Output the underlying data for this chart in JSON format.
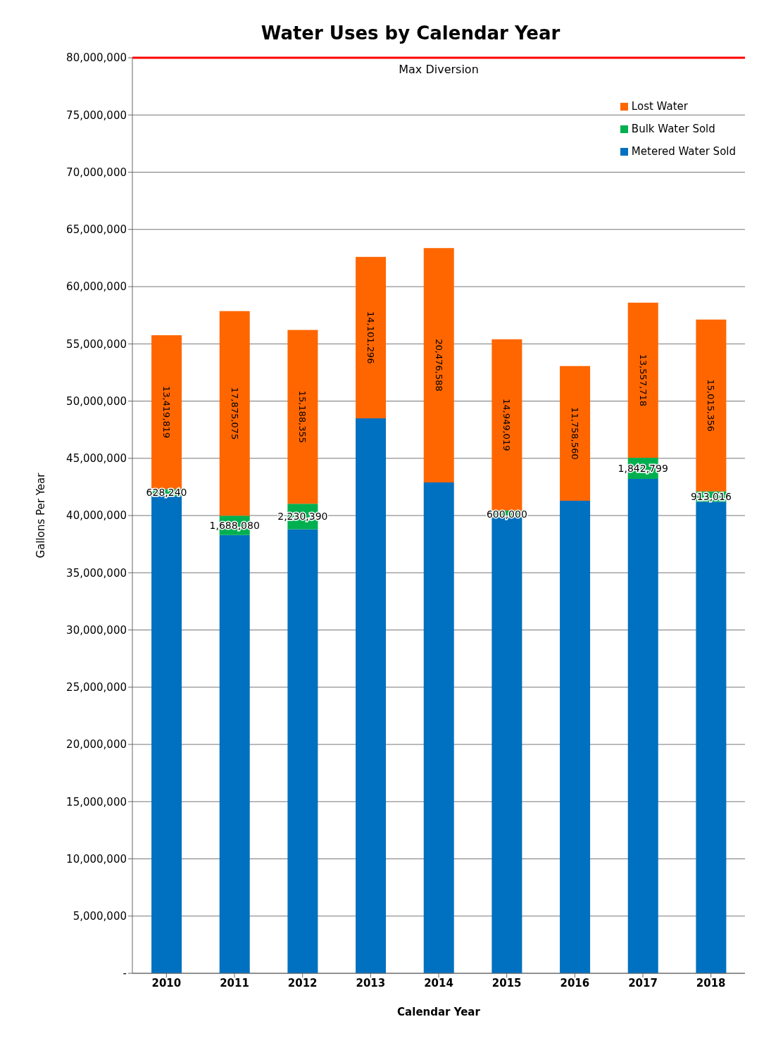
{
  "chart_data": {
    "type": "bar",
    "title": "Water Uses by Calendar Year",
    "xlabel": "Calendar Year",
    "ylabel": "Gallons Per Year",
    "categories": [
      "2010",
      "2011",
      "2012",
      "2013",
      "2014",
      "2015",
      "2016",
      "2017",
      "2018"
    ],
    "stacked": true,
    "series": [
      {
        "name": "Metered Water Sold",
        "color": "#0070c0",
        "values": [
          41700000,
          38300000,
          38800000,
          48500000,
          42900000,
          39850000,
          41300000,
          43200000,
          41200000
        ],
        "value_labels": [
          null,
          null,
          null,
          null,
          null,
          null,
          null,
          null,
          null
        ]
      },
      {
        "name": "Bulk Water Sold",
        "color": "#00b050",
        "values": [
          628240,
          1688080,
          2230390,
          null,
          null,
          600000,
          null,
          1842799,
          913016
        ],
        "value_labels": [
          "628,240",
          "1,688,080",
          "2,230,390",
          null,
          null,
          "600,000",
          null,
          "1,842,799",
          "913,016"
        ]
      },
      {
        "name": "Lost Water",
        "color": "#ff6600",
        "values": [
          13419819,
          17875075,
          15188355,
          14101296,
          20476588,
          14949019,
          11758560,
          13557718,
          15015356
        ],
        "value_labels": [
          "13,419,819",
          "17,875,075",
          "15,188,355",
          "14,101,296",
          "20,476,588",
          "14,949,019",
          "11,758,560",
          "13,557,718",
          "15,015,356"
        ]
      }
    ],
    "ylim": [
      0,
      80000000
    ],
    "yticks": [
      {
        "value": 0,
        "label": "-"
      },
      {
        "value": 5000000,
        "label": "5,000,000"
      },
      {
        "value": 10000000,
        "label": "10,000,000"
      },
      {
        "value": 15000000,
        "label": "15,000,000"
      },
      {
        "value": 20000000,
        "label": "20,000,000"
      },
      {
        "value": 25000000,
        "label": "25,000,000"
      },
      {
        "value": 30000000,
        "label": "30,000,000"
      },
      {
        "value": 35000000,
        "label": "35,000,000"
      },
      {
        "value": 40000000,
        "label": "40,000,000"
      },
      {
        "value": 45000000,
        "label": "45,000,000"
      },
      {
        "value": 50000000,
        "label": "50,000,000"
      },
      {
        "value": 55000000,
        "label": "55,000,000"
      },
      {
        "value": 60000000,
        "label": "60,000,000"
      },
      {
        "value": 65000000,
        "label": "65,000,000"
      },
      {
        "value": 70000000,
        "label": "70,000,000"
      },
      {
        "value": 75000000,
        "label": "75,000,000"
      },
      {
        "value": 80000000,
        "label": "80,000,000"
      }
    ],
    "ref_lines": [
      {
        "axis": "y",
        "value": 80000000,
        "label": "Max Diversion",
        "color": "#ff0000"
      }
    ],
    "grid": "y",
    "legend": "top right"
  }
}
